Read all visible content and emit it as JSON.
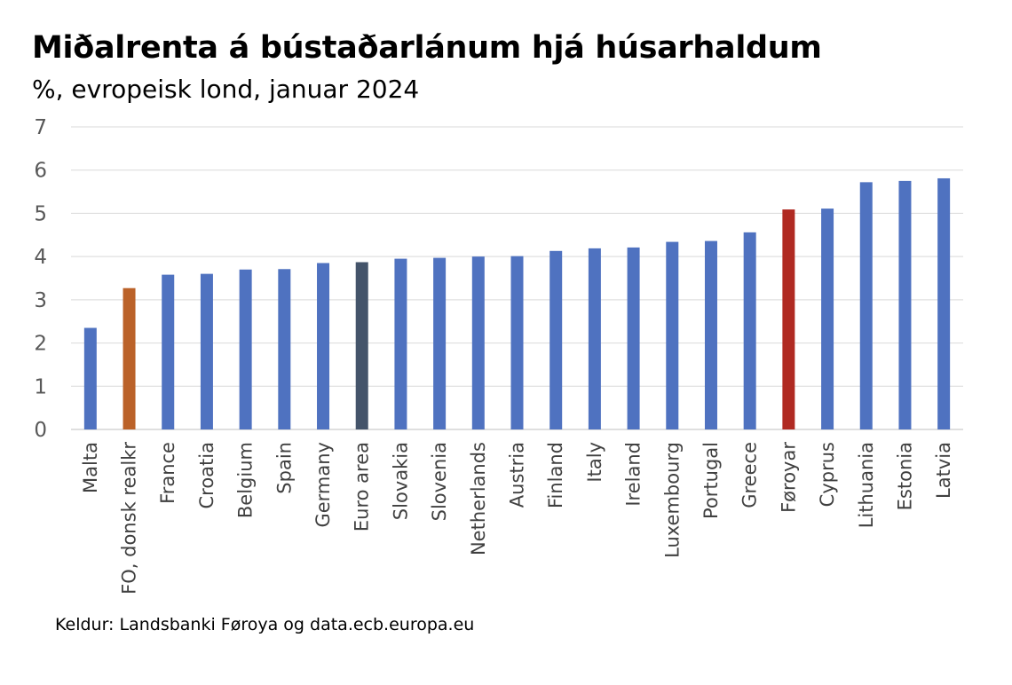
{
  "title": "Miðalrenta á bústaðarlánum hjá húsarhaldum",
  "subtitle": "%, evropeisk lond, januar 2024",
  "source": "Keldur: Landsbanki Føroya og data.ecb.europa.eu",
  "colors": {
    "default": "#4f72c0",
    "fo_danish": "#bb6229",
    "euro_area": "#44546a",
    "faroe": "#b02a22",
    "grid": "#d9d9d9",
    "axis": "#bfbfbf"
  },
  "chart_data": {
    "type": "bar",
    "title": "Miðalrenta á bústaðarlánum hjá húsarhaldum",
    "subtitle": "%, evropeisk lond, januar 2024",
    "xlabel": "",
    "ylabel": "",
    "ylim": [
      0,
      7
    ],
    "yticks": [
      0,
      1,
      2,
      3,
      4,
      5,
      6,
      7
    ],
    "grid": true,
    "categories": [
      "Malta",
      "FO, donsk realkr",
      "France",
      "Croatia",
      "Belgium",
      "Spain",
      "Germany",
      "Euro area",
      "Slovakia",
      "Slovenia",
      "Netherlands",
      "Austria",
      "Finland",
      "Italy",
      "Ireland",
      "Luxembourg",
      "Portugal",
      "Greece",
      "Føroyar",
      "Cyprus",
      "Lithuania",
      "Estonia",
      "Latvia"
    ],
    "values": [
      2.35,
      3.27,
      3.58,
      3.6,
      3.7,
      3.71,
      3.85,
      3.87,
      3.95,
      3.97,
      4.0,
      4.01,
      4.13,
      4.19,
      4.21,
      4.34,
      4.36,
      4.56,
      5.09,
      5.11,
      5.72,
      5.75,
      5.81
    ],
    "bar_colors": [
      "default",
      "fo_danish",
      "default",
      "default",
      "default",
      "default",
      "default",
      "euro_area",
      "default",
      "default",
      "default",
      "default",
      "default",
      "default",
      "default",
      "default",
      "default",
      "default",
      "faroe",
      "default",
      "default",
      "default",
      "default"
    ]
  }
}
